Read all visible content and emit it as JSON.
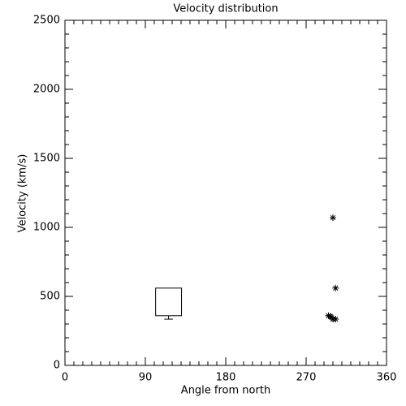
{
  "chart_data": {
    "type": "scatter",
    "title": "Velocity distribution",
    "x_label": "Angle from north",
    "y_label": "Velocity (km/s)",
    "xlim": [
      0,
      360
    ],
    "xticks": [
      0,
      90,
      180,
      270,
      360
    ],
    "ylim": [
      0,
      2500
    ],
    "yticks": [
      0,
      500,
      1000,
      1500,
      2000,
      2500
    ],
    "color": "#000000",
    "x": [
      300,
      303,
      295,
      298,
      300,
      303,
      297
    ],
    "values": [
      1070,
      560,
      360,
      350,
      335,
      335,
      355
    ],
    "boxes": [
      {
        "x": 116,
        "width": 29,
        "low": 335,
        "q1": 360,
        "q3": 560
      }
    ]
  }
}
